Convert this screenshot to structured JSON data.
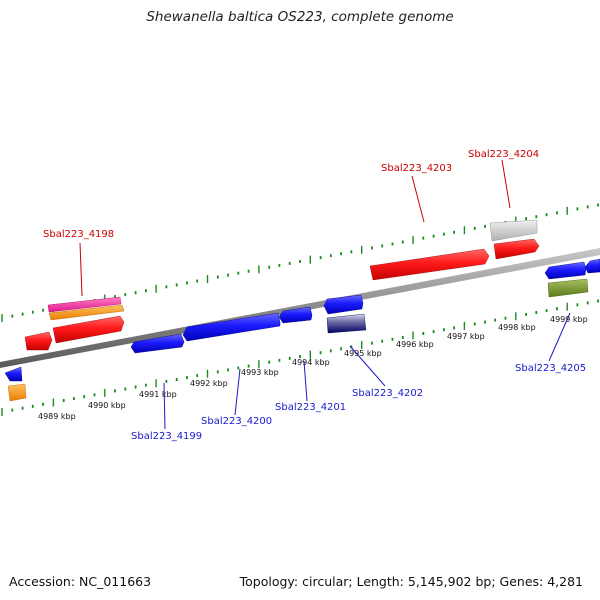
{
  "title": "Shewanella baltica OS223, complete genome",
  "footer": {
    "accession": "Accession: NC_011663",
    "summary": "Topology: circular; Length: 5,145,902 bp; Genes: 4,281"
  },
  "colors": {
    "forward_ticks": "#1e8a1e",
    "backbone": "#8a8a8a",
    "label_forward": "#cc0000",
    "label_reverse": "#1a1acc"
  },
  "kbp_labels": [
    "4989 kbp",
    "4990 kbp",
    "4991 kbp",
    "4992 kbp",
    "4993 kbp",
    "4994 kbp",
    "4995 kbp",
    "4996 kbp",
    "4997 kbp",
    "4998 kbp",
    "4999 kbp"
  ],
  "gene_labels": {
    "forward": [
      "Sbal223_4198",
      "Sbal223_4203",
      "Sbal223_4204"
    ],
    "reverse": [
      "Sbal223_4199",
      "Sbal223_4200",
      "Sbal223_4201",
      "Sbal223_4202",
      "Sbal223_4205"
    ]
  },
  "feature_colors": {
    "forward": [
      "red",
      "magenta",
      "orange",
      "light-gray"
    ],
    "reverse": [
      "blue",
      "navy",
      "olive-green",
      "orange"
    ]
  }
}
